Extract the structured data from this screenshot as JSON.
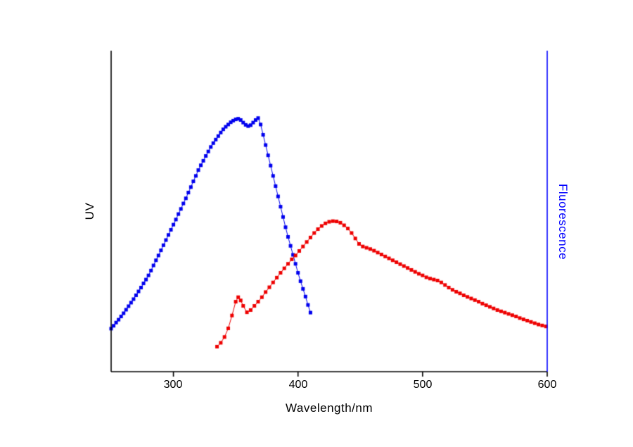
{
  "chart_data": {
    "type": "scatter",
    "title": "",
    "xlabel": "Wavelength/nm",
    "ylabel_left": "UV",
    "ylabel_right": "Fluorescence",
    "x_range": [
      250,
      600
    ],
    "y_range": [
      0,
      1
    ],
    "x_ticks": [
      300,
      400,
      500,
      600
    ],
    "x_tick_labels": [
      "300",
      "400",
      "500",
      "600"
    ],
    "grid": "off",
    "legend": "none",
    "axis_colors": {
      "left": "#000000",
      "bottom": "#000000",
      "right": "#0000ff"
    },
    "series": [
      {
        "name": "UV",
        "color": "#0000ee",
        "marker": "square",
        "points": [
          [
            250,
            0.134
          ],
          [
            252,
            0.143
          ],
          [
            254,
            0.153
          ],
          [
            256,
            0.162
          ],
          [
            258,
            0.172
          ],
          [
            260,
            0.182
          ],
          [
            262,
            0.193
          ],
          [
            264,
            0.204
          ],
          [
            266,
            0.215
          ],
          [
            268,
            0.226
          ],
          [
            270,
            0.238
          ],
          [
            272,
            0.25
          ],
          [
            274,
            0.262
          ],
          [
            276,
            0.275
          ],
          [
            278,
            0.287
          ],
          [
            280,
            0.3
          ],
          [
            282,
            0.315
          ],
          [
            284,
            0.331
          ],
          [
            286,
            0.347
          ],
          [
            288,
            0.362
          ],
          [
            290,
            0.378
          ],
          [
            292,
            0.394
          ],
          [
            294,
            0.41
          ],
          [
            296,
            0.426
          ],
          [
            298,
            0.442
          ],
          [
            300,
            0.458
          ],
          [
            302,
            0.474
          ],
          [
            304,
            0.491
          ],
          [
            306,
            0.507
          ],
          [
            308,
            0.524
          ],
          [
            310,
            0.54
          ],
          [
            312,
            0.558
          ],
          [
            314,
            0.575
          ],
          [
            316,
            0.593
          ],
          [
            318,
            0.61
          ],
          [
            320,
            0.628
          ],
          [
            322,
            0.643
          ],
          [
            324,
            0.657
          ],
          [
            326,
            0.672
          ],
          [
            328,
            0.686
          ],
          [
            330,
            0.7
          ],
          [
            332,
            0.712
          ],
          [
            334,
            0.723
          ],
          [
            336,
            0.734
          ],
          [
            338,
            0.745
          ],
          [
            340,
            0.755
          ],
          [
            342,
            0.763
          ],
          [
            344,
            0.77
          ],
          [
            346,
            0.777
          ],
          [
            348,
            0.782
          ],
          [
            350,
            0.786
          ],
          [
            352,
            0.788
          ],
          [
            354,
            0.784
          ],
          [
            356,
            0.776
          ],
          [
            358,
            0.769
          ],
          [
            360,
            0.765
          ],
          [
            362,
            0.768
          ],
          [
            364,
            0.776
          ],
          [
            366,
            0.784
          ],
          [
            368,
            0.79
          ],
          [
            370,
            0.77
          ],
          [
            372,
            0.738
          ],
          [
            374,
            0.706
          ],
          [
            376,
            0.674
          ],
          [
            378,
            0.642
          ],
          [
            380,
            0.61
          ],
          [
            382,
            0.578
          ],
          [
            384,
            0.546
          ],
          [
            386,
            0.514
          ],
          [
            388,
            0.482
          ],
          [
            390,
            0.45
          ],
          [
            392,
            0.42
          ],
          [
            394,
            0.392
          ],
          [
            396,
            0.364
          ],
          [
            398,
            0.336
          ],
          [
            400,
            0.308
          ],
          [
            402,
            0.282
          ],
          [
            404,
            0.258
          ],
          [
            406,
            0.234
          ],
          [
            408,
            0.208
          ],
          [
            410,
            0.184
          ]
        ]
      },
      {
        "name": "Fluorescence",
        "color": "#ee0000",
        "marker": "square",
        "points": [
          [
            335,
            0.078
          ],
          [
            338,
            0.09
          ],
          [
            341,
            0.108
          ],
          [
            344,
            0.135
          ],
          [
            347,
            0.175
          ],
          [
            350,
            0.218
          ],
          [
            352,
            0.232
          ],
          [
            354,
            0.222
          ],
          [
            356,
            0.205
          ],
          [
            359,
            0.185
          ],
          [
            362,
            0.192
          ],
          [
            365,
            0.205
          ],
          [
            368,
            0.218
          ],
          [
            371,
            0.232
          ],
          [
            374,
            0.248
          ],
          [
            377,
            0.263
          ],
          [
            380,
            0.278
          ],
          [
            383,
            0.293
          ],
          [
            386,
            0.308
          ],
          [
            389,
            0.322
          ],
          [
            392,
            0.336
          ],
          [
            395,
            0.35
          ],
          [
            398,
            0.362
          ],
          [
            401,
            0.376
          ],
          [
            404,
            0.39
          ],
          [
            407,
            0.404
          ],
          [
            410,
            0.418
          ],
          [
            413,
            0.432
          ],
          [
            416,
            0.444
          ],
          [
            419,
            0.454
          ],
          [
            422,
            0.462
          ],
          [
            425,
            0.467
          ],
          [
            428,
            0.469
          ],
          [
            431,
            0.468
          ],
          [
            434,
            0.464
          ],
          [
            437,
            0.456
          ],
          [
            440,
            0.446
          ],
          [
            443,
            0.432
          ],
          [
            446,
            0.415
          ],
          [
            449,
            0.398
          ],
          [
            452,
            0.39
          ],
          [
            455,
            0.386
          ],
          [
            458,
            0.382
          ],
          [
            461,
            0.377
          ],
          [
            464,
            0.371
          ],
          [
            467,
            0.365
          ],
          [
            470,
            0.359
          ],
          [
            473,
            0.353
          ],
          [
            476,
            0.347
          ],
          [
            479,
            0.341
          ],
          [
            482,
            0.335
          ],
          [
            485,
            0.329
          ],
          [
            488,
            0.323
          ],
          [
            491,
            0.317
          ],
          [
            494,
            0.311
          ],
          [
            497,
            0.305
          ],
          [
            500,
            0.3
          ],
          [
            503,
            0.294
          ],
          [
            506,
            0.29
          ],
          [
            509,
            0.287
          ],
          [
            512,
            0.284
          ],
          [
            515,
            0.278
          ],
          [
            518,
            0.27
          ],
          [
            521,
            0.262
          ],
          [
            524,
            0.255
          ],
          [
            527,
            0.249
          ],
          [
            530,
            0.244
          ],
          [
            533,
            0.238
          ],
          [
            536,
            0.233
          ],
          [
            539,
            0.228
          ],
          [
            542,
            0.223
          ],
          [
            545,
            0.218
          ],
          [
            548,
            0.212
          ],
          [
            551,
            0.207
          ],
          [
            554,
            0.202
          ],
          [
            557,
            0.197
          ],
          [
            560,
            0.192
          ],
          [
            563,
            0.188
          ],
          [
            566,
            0.184
          ],
          [
            569,
            0.18
          ],
          [
            572,
            0.176
          ],
          [
            575,
            0.172
          ],
          [
            578,
            0.167
          ],
          [
            581,
            0.163
          ],
          [
            584,
            0.159
          ],
          [
            587,
            0.155
          ],
          [
            590,
            0.151
          ],
          [
            593,
            0.147
          ],
          [
            596,
            0.144
          ],
          [
            599,
            0.141
          ]
        ]
      }
    ]
  }
}
